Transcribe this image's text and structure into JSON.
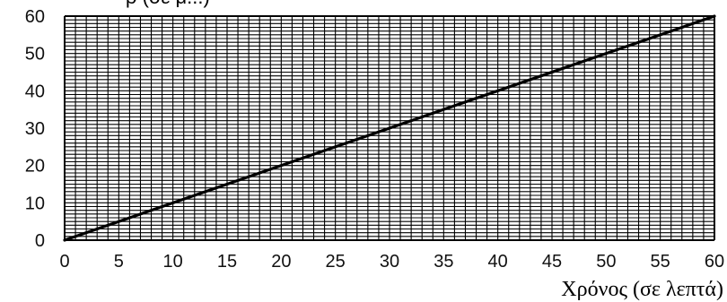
{
  "chart_data": {
    "type": "line",
    "title": "",
    "xlabel": "Χρόνος (σε λεπτά)",
    "ylabel_fragment": "ρ (σε μ...)",
    "xlim": [
      0,
      60
    ],
    "ylim": [
      0,
      60
    ],
    "x_ticks": [
      0,
      5,
      10,
      15,
      20,
      25,
      30,
      35,
      40,
      45,
      50,
      55,
      60
    ],
    "y_ticks": [
      0,
      10,
      20,
      30,
      40,
      50,
      60
    ],
    "x_tick_labels": [
      "0",
      "5",
      "10",
      "15",
      "20",
      "25",
      "30",
      "35",
      "40",
      "45",
      "50",
      "55",
      "60"
    ],
    "y_tick_labels": [
      "0",
      "10",
      "20",
      "30",
      "40",
      "50",
      "60"
    ],
    "grid": true,
    "grid_minor_step": 1,
    "colors": {
      "grid": "#000000",
      "line": "#000000",
      "background": "#ffffff"
    },
    "series": [
      {
        "x": [
          0,
          60
        ],
        "y": [
          0,
          60
        ]
      }
    ]
  }
}
